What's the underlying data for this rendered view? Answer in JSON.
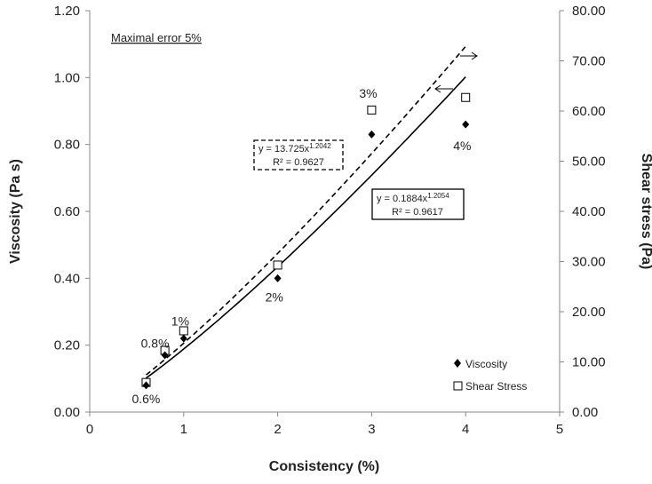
{
  "chart_data": {
    "type": "scatter",
    "xlabel": "Consistency (%)",
    "ylabel_left": "Viscosity (Pa s)",
    "ylabel_right": "Shear stress (Pa)",
    "xlim": [
      0,
      5
    ],
    "ylim_left": [
      0,
      1.2
    ],
    "ylim_right": [
      0,
      80
    ],
    "x_ticks": [
      "0",
      "1",
      "2",
      "3",
      "4",
      "5"
    ],
    "y_left_ticks": [
      "0.00",
      "0.20",
      "0.40",
      "0.60",
      "0.80",
      "1.00",
      "1.20"
    ],
    "y_right_ticks": [
      "0.00",
      "10.00",
      "20.00",
      "30.00",
      "40.00",
      "50.00",
      "60.00",
      "70.00",
      "80.00"
    ],
    "annotation": "Maximal error 5%",
    "series": [
      {
        "name": "Viscosity",
        "axis": "left",
        "marker": "diamond",
        "points": [
          {
            "x": 0.6,
            "y": 0.08
          },
          {
            "x": 0.8,
            "y": 0.17
          },
          {
            "x": 1.0,
            "y": 0.22
          },
          {
            "x": 2.0,
            "y": 0.4
          },
          {
            "x": 3.0,
            "y": 0.83
          },
          {
            "x": 4.0,
            "y": 0.86
          }
        ],
        "trendline": {
          "equation": "y = 0.1884x",
          "exponent": "1.2054",
          "r2": "R² = 0.9617",
          "coef": 0.1884,
          "power": 1.2054,
          "style": "solid"
        }
      },
      {
        "name": "Shear Stress",
        "axis": "right",
        "marker": "square",
        "points": [
          {
            "x": 0.6,
            "y": 5.9
          },
          {
            "x": 0.8,
            "y": 12.3
          },
          {
            "x": 1.0,
            "y": 16.2
          },
          {
            "x": 2.0,
            "y": 29.3
          },
          {
            "x": 3.0,
            "y": 60.2
          },
          {
            "x": 4.0,
            "y": 62.7
          }
        ],
        "trendline": {
          "equation": "y = 13.725x",
          "exponent": "1.2042",
          "r2": "R² = 0.9627",
          "coef": 13.725,
          "power": 1.2042,
          "style": "dashed"
        }
      }
    ],
    "point_labels": [
      {
        "text": "0.6%",
        "x": 0.6,
        "y": 0.08
      },
      {
        "text": "0.8%",
        "x": 0.8,
        "y": 0.185
      },
      {
        "text": "1%",
        "x": 1.0,
        "y": 0.245
      },
      {
        "text": "2%",
        "x": 2.0,
        "y": 0.4
      },
      {
        "text": "3%",
        "x": 3.0,
        "y": 0.905
      },
      {
        "text": "4%",
        "x": 4.0,
        "y": 0.86
      }
    ],
    "legend": {
      "position": "bottom-right",
      "items": [
        "Viscosity",
        "Shear Stress"
      ]
    }
  }
}
